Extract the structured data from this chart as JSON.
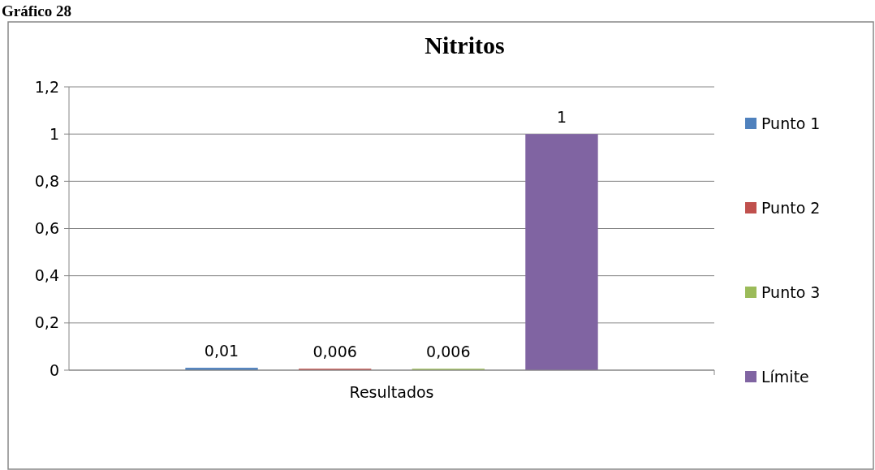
{
  "chart_data": {
    "type": "bar",
    "title": "Nitritos",
    "annotations": [
      "Gráfico 28"
    ],
    "categories": [
      "Resultados"
    ],
    "series": [
      {
        "name": "Punto 1",
        "color": "#4f81bd",
        "values": [
          0.01
        ],
        "value_labels": [
          "0,01"
        ]
      },
      {
        "name": "Punto 2",
        "color": "#c0504d",
        "values": [
          0.006
        ],
        "value_labels": [
          "0,006"
        ]
      },
      {
        "name": "Punto 3",
        "color": "#9bbb59",
        "values": [
          0.006
        ],
        "value_labels": [
          "0,006"
        ]
      },
      {
        "name": "Límite",
        "color": "#8064a2",
        "values": [
          1
        ],
        "value_labels": [
          "1"
        ]
      }
    ],
    "ylim": [
      0,
      1.2
    ],
    "yticks": [
      0,
      {
        "value": 0.2,
        "label": "0,2"
      },
      {
        "value": 0.4,
        "label": "0,4"
      },
      {
        "value": 0.6,
        "label": "0,6"
      },
      {
        "value": 0.8,
        "label": "0,8"
      },
      1,
      {
        "value": 1.2,
        "label": "1,2"
      }
    ],
    "grid": "y",
    "legend": "right"
  }
}
